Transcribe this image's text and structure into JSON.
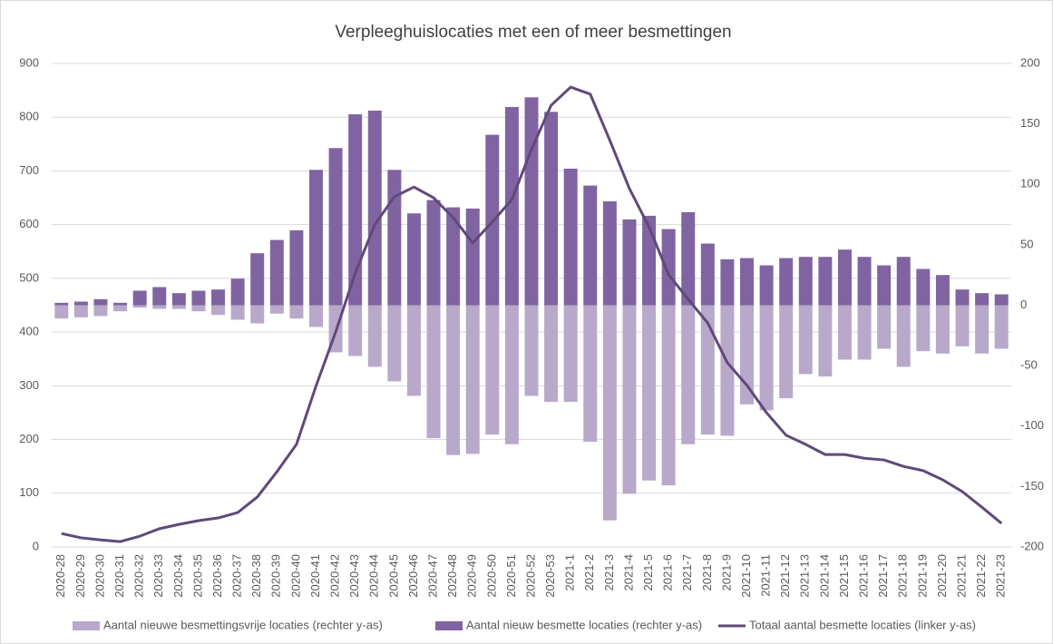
{
  "chart_data": {
    "type": "bar-line",
    "title": "Verpleeghuislocaties met een of meer besmettingen",
    "categories": [
      "2020-28",
      "2020-29",
      "2020-30",
      "2020-31",
      "2020-32",
      "2020-33",
      "2020-34",
      "2020-35",
      "2020-36",
      "2020-37",
      "2020-38",
      "2020-39",
      "2020-40",
      "2020-41",
      "2020-42",
      "2020-43",
      "2020-44",
      "2020-45",
      "2020-46",
      "2020-47",
      "2020-48",
      "2020-49",
      "2020-50",
      "2020-51",
      "2020-52",
      "2020-53",
      "2021-1",
      "2021-2",
      "2021-3",
      "2021-4",
      "2021-5",
      "2021-6",
      "2021-7",
      "2021-8",
      "2021-9",
      "2021-10",
      "2021-11",
      "2021-12",
      "2021-13",
      "2021-14",
      "2021-15",
      "2021-16",
      "2021-17",
      "2021-18",
      "2021-19",
      "2021-20",
      "2021-21",
      "2021-22",
      "2021-23"
    ],
    "series": [
      {
        "name": "Aantal nieuwe besmettingsvrije locaties (rechter y-as)",
        "type": "bar",
        "axis": "y2",
        "color": "#b8a9cb",
        "values": [
          -11,
          -10,
          -9,
          -5,
          -2,
          -3,
          -3,
          -5,
          -8,
          -12,
          -15,
          -7,
          -11,
          -18,
          -39,
          -42,
          -51,
          -63,
          -75,
          -110,
          -124,
          -123,
          -107,
          -115,
          -75,
          -80,
          -80,
          -113,
          -178,
          -156,
          -145,
          -149,
          -115,
          -107,
          -108,
          -82,
          -87,
          -77,
          -57,
          -59,
          -45,
          -45,
          -36,
          -51,
          -38,
          -40,
          -34,
          -40,
          -36
        ]
      },
      {
        "name": "Aantal nieuw besmette locaties (rechter y-as)",
        "type": "bar",
        "axis": "y2",
        "color": "#8064a2",
        "values": [
          2,
          3,
          5,
          2,
          12,
          15,
          10,
          12,
          13,
          22,
          43,
          54,
          62,
          112,
          130,
          158,
          161,
          112,
          76,
          87,
          81,
          80,
          141,
          164,
          172,
          160,
          113,
          99,
          86,
          71,
          74,
          63,
          77,
          51,
          38,
          39,
          33,
          39,
          40,
          40,
          46,
          40,
          33,
          40,
          30,
          25,
          13,
          10,
          9
        ]
      },
      {
        "name": "Totaal aantal besmette locaties (linker y-as)",
        "type": "line",
        "axis": "y",
        "color": "#60497a",
        "values": [
          25,
          17,
          13,
          10,
          20,
          34,
          42,
          49,
          54,
          64,
          93,
          140,
          191,
          300,
          400,
          510,
          600,
          652,
          670,
          650,
          613,
          566,
          605,
          647,
          740,
          822,
          856,
          843,
          757,
          667,
          596,
          507,
          461,
          417,
          343,
          301,
          250,
          208,
          191,
          172,
          172,
          165,
          162,
          150,
          142,
          125,
          103,
          74,
          44
        ]
      }
    ],
    "ylim": [
      0,
      900
    ],
    "yticks": [
      0,
      100,
      200,
      300,
      400,
      500,
      600,
      700,
      800,
      900
    ],
    "y2lim": [
      -200,
      200
    ],
    "y2ticks": [
      -200,
      -150,
      -100,
      -50,
      0,
      50,
      100,
      150,
      200
    ],
    "grid": true,
    "legend": "bottom"
  }
}
